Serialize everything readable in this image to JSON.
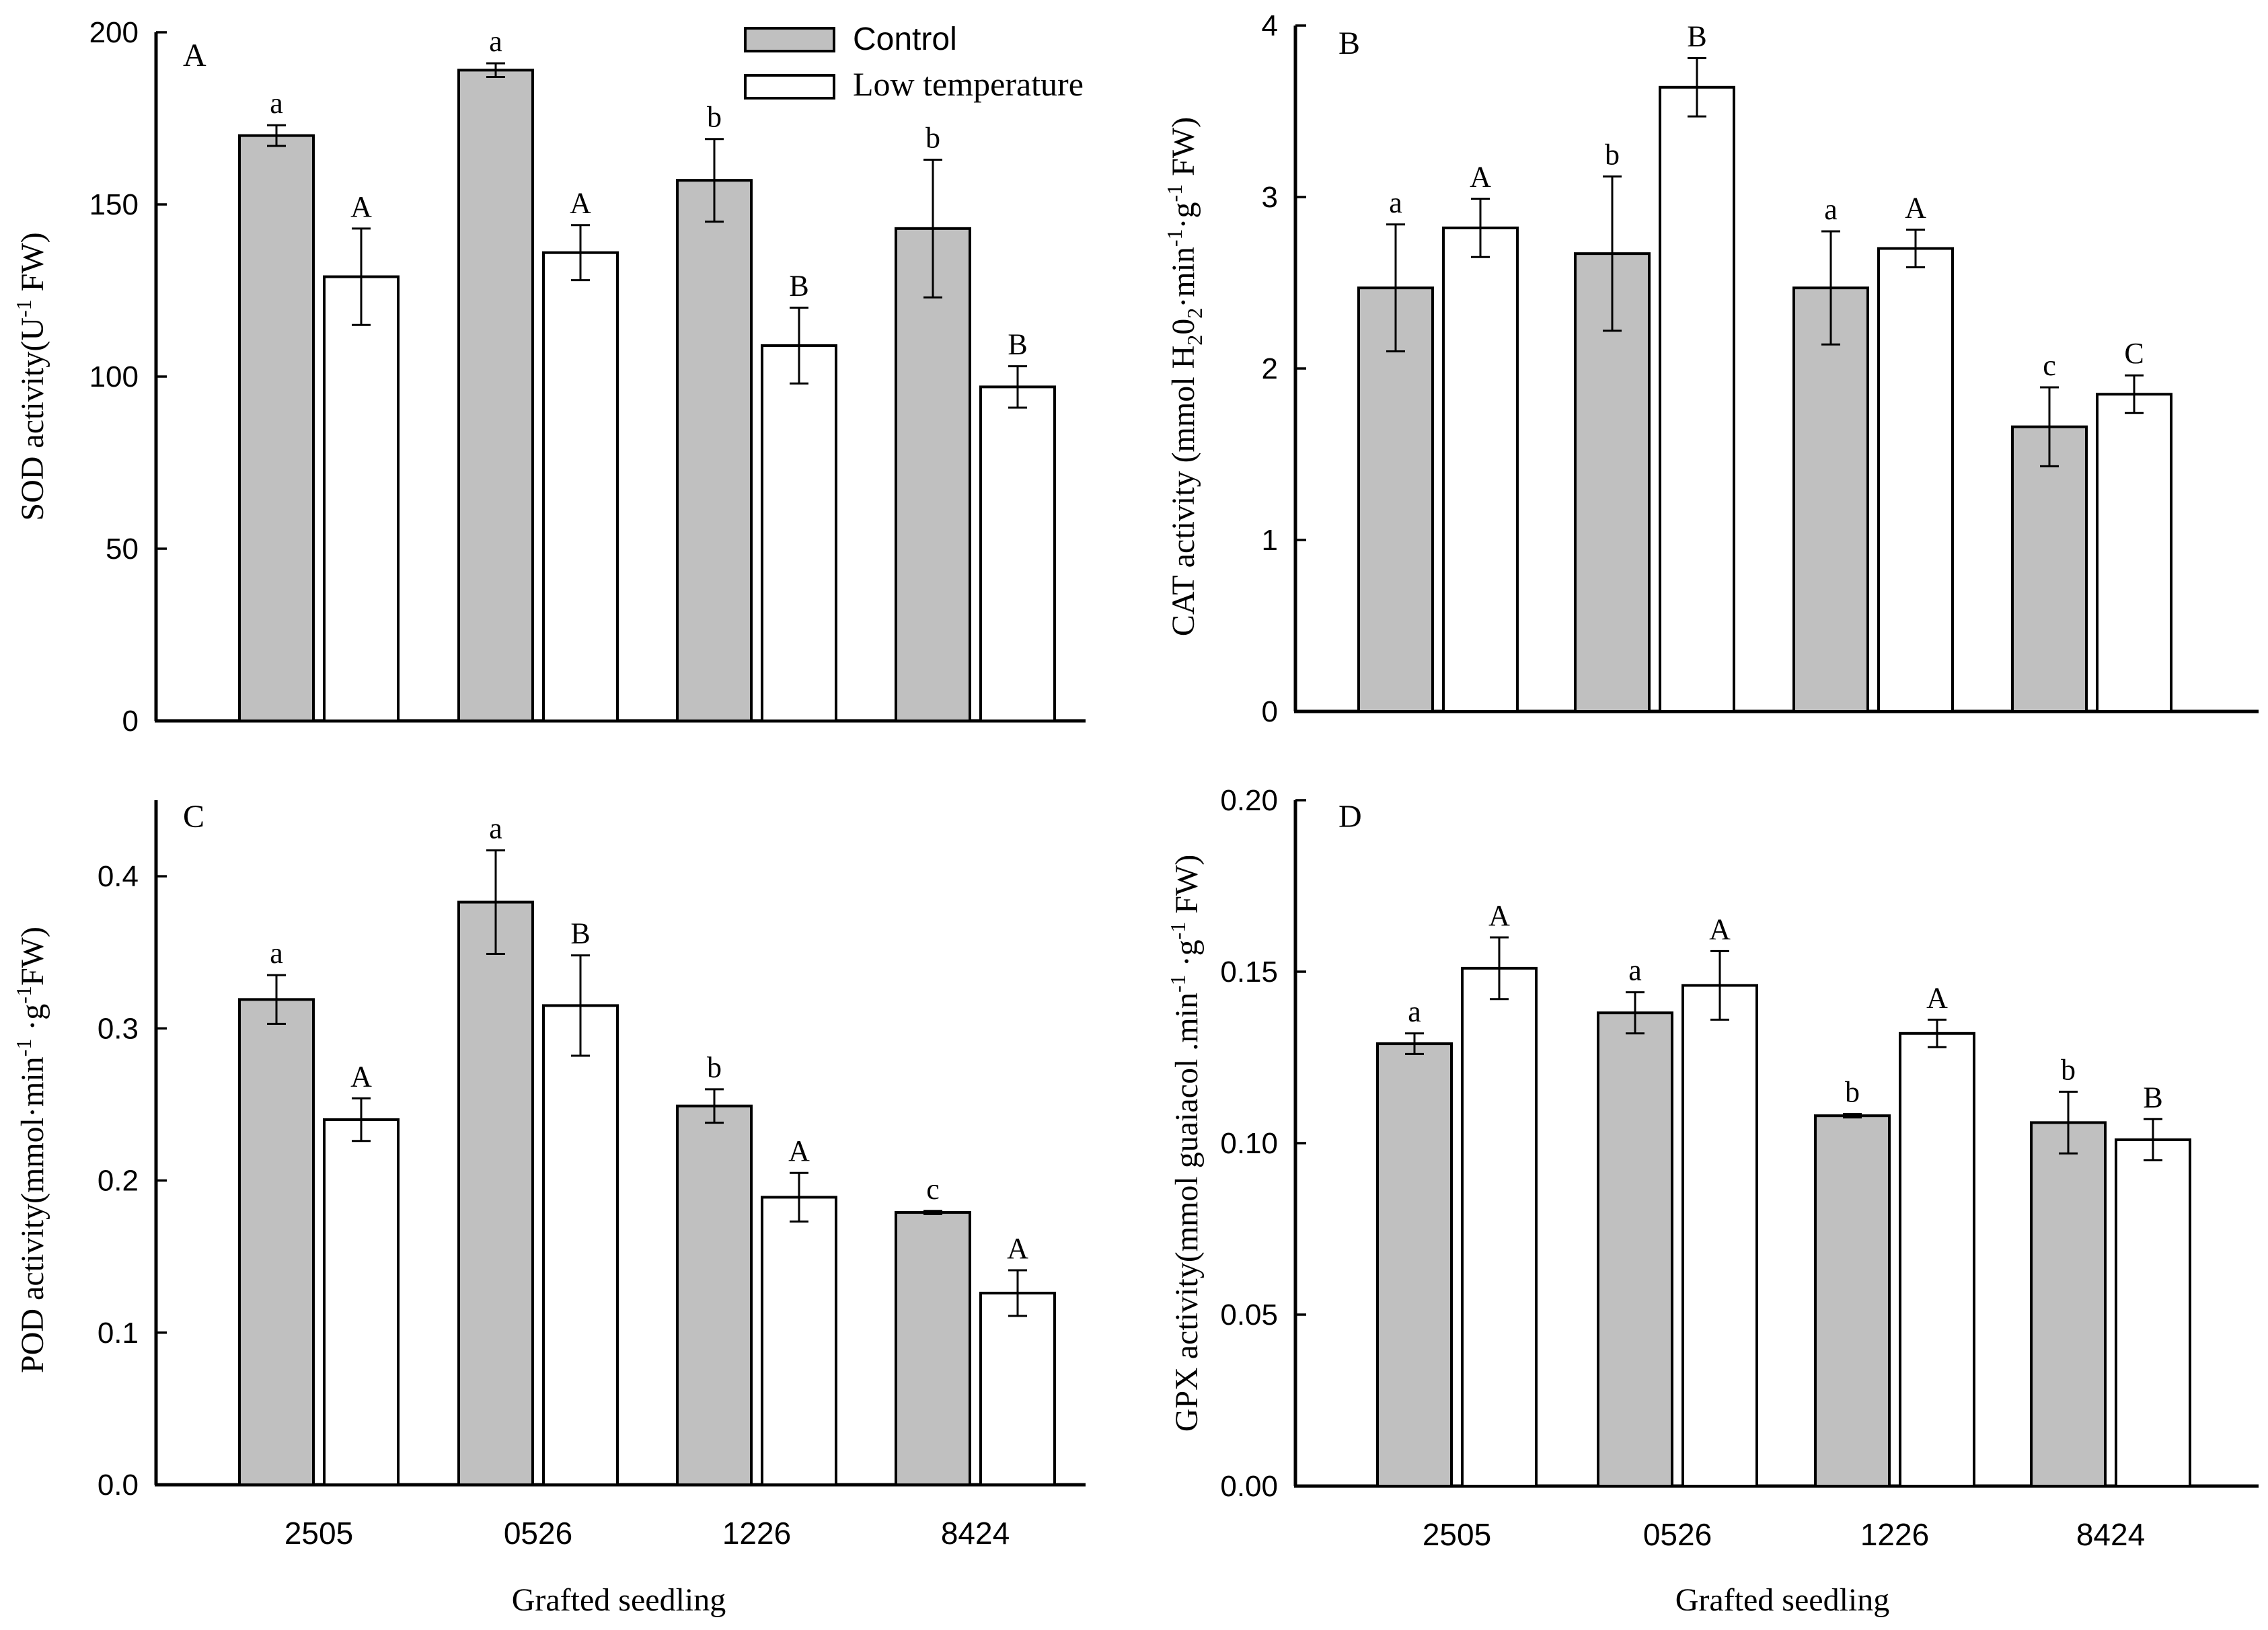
{
  "legend": {
    "items": [
      {
        "name": "Control",
        "color": "#c0c0c0"
      },
      {
        "name": "Low temperature",
        "color": "#ffffff"
      }
    ]
  },
  "x_axis_title": "Grafted seedling",
  "chart_data": [
    {
      "type": "bar",
      "panel": "A",
      "categories": [
        "2505",
        "0526",
        "1226",
        "8424"
      ],
      "ylim": [
        0,
        200
      ],
      "yticks": [
        "0",
        "50",
        "100",
        "150",
        "200"
      ],
      "ytick_values": [
        0,
        50,
        100,
        150,
        200
      ],
      "ylabel": {
        "pre": "SOD activity(U",
        "sup1": "-1",
        "post": " FW)"
      },
      "xlabel": "",
      "series": [
        {
          "name": "Control",
          "values": [
            170,
            189,
            157,
            143
          ],
          "errors": [
            3,
            2,
            12,
            20
          ],
          "labels": [
            "a",
            "a",
            "b",
            "b"
          ]
        },
        {
          "name": "Low temperature",
          "values": [
            129,
            136,
            109,
            97
          ],
          "errors": [
            14,
            8,
            11,
            6
          ],
          "labels": [
            "A",
            "A",
            "B",
            "B"
          ]
        }
      ]
    },
    {
      "type": "bar",
      "panel": "B",
      "categories": [
        "2505",
        "0526",
        "1226",
        "8424"
      ],
      "ylim": [
        0,
        4
      ],
      "yticks": [
        "0",
        "1",
        "2",
        "3",
        "4"
      ],
      "ytick_values": [
        0,
        1,
        2,
        3,
        4
      ],
      "ylabel": {
        "pre": "CAT activity (mmol H",
        "sub1": "2",
        "mid1": "0",
        "sub2": "2",
        "mid2": "·min",
        "sup1": "-1",
        "mid3": "·g",
        "sup2": "-1",
        "post": " FW)"
      },
      "xlabel": "",
      "series": [
        {
          "name": "Control",
          "values": [
            2.47,
            2.67,
            2.47,
            1.66
          ],
          "errors": [
            0.37,
            0.45,
            0.33,
            0.23
          ],
          "labels": [
            "a",
            "b",
            "a",
            "c"
          ]
        },
        {
          "name": "Low temperature",
          "values": [
            2.82,
            3.64,
            2.7,
            1.85
          ],
          "errors": [
            0.17,
            0.17,
            0.11,
            0.11
          ],
          "labels": [
            "A",
            "B",
            "A",
            "C"
          ]
        }
      ]
    },
    {
      "type": "bar",
      "panel": "C",
      "categories": [
        "2505",
        "0526",
        "1226",
        "8424"
      ],
      "ylim": [
        0,
        0.45
      ],
      "yticks": [
        "0.0",
        "0.1",
        "0.2",
        "0.3",
        "0.4"
      ],
      "ytick_values": [
        0,
        0.1,
        0.2,
        0.3,
        0.4
      ],
      "ylabel": {
        "pre": "POD activity(mmol·min",
        "sup1": "-1",
        "mid1": " ·g",
        "sup2": "-1",
        "post": "FW)"
      },
      "xlabel": "Grafted seedling",
      "series": [
        {
          "name": "Control",
          "values": [
            0.319,
            0.383,
            0.249,
            0.179
          ],
          "errors": [
            0.016,
            0.034,
            0.011,
            0.001
          ],
          "labels": [
            "a",
            "a",
            "b",
            "c"
          ]
        },
        {
          "name": "Low temperature",
          "values": [
            0.24,
            0.315,
            0.189,
            0.126
          ],
          "errors": [
            0.014,
            0.033,
            0.016,
            0.015
          ],
          "labels": [
            "A",
            "B",
            "A",
            "A"
          ]
        }
      ]
    },
    {
      "type": "bar",
      "panel": "D",
      "categories": [
        "2505",
        "0526",
        "1226",
        "8424"
      ],
      "ylim": [
        0,
        0.2
      ],
      "yticks": [
        "0.00",
        "0.05",
        "0.10",
        "0.15",
        "0.20"
      ],
      "ytick_values": [
        0,
        0.05,
        0.1,
        0.15,
        0.2
      ],
      "ylabel": {
        "pre": "GPX activity(mmol guaiacol .min",
        "sup1": "-1",
        "mid1": " ·g",
        "sup2": "-1",
        "post": " FW)"
      },
      "xlabel": "Grafted seedling",
      "series": [
        {
          "name": "Control",
          "values": [
            0.129,
            0.138,
            0.108,
            0.106
          ],
          "errors": [
            0.003,
            0.006,
            0.0005,
            0.009
          ],
          "labels": [
            "a",
            "a",
            "b",
            "b"
          ]
        },
        {
          "name": "Low temperature",
          "values": [
            0.151,
            0.146,
            0.132,
            0.101
          ],
          "errors": [
            0.009,
            0.01,
            0.004,
            0.006
          ],
          "labels": [
            "A",
            "A",
            "A",
            "B"
          ]
        }
      ]
    }
  ]
}
